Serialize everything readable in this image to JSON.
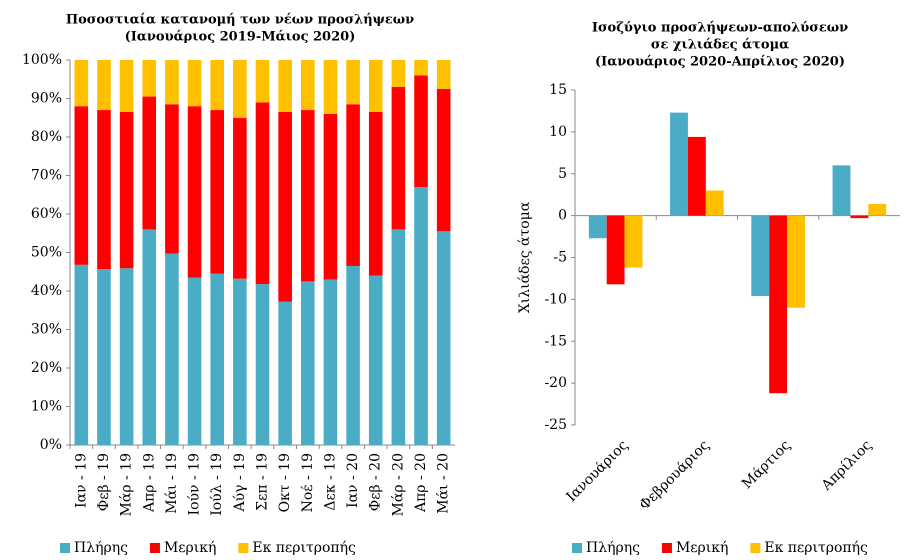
{
  "chart_data": [
    {
      "type": "bar",
      "stacked": true,
      "title": [
        "Ποσοστιαία κατανομή των νέων προσλήψεων",
        "(Ιανουάριος 2019-Μάιος 2020)"
      ],
      "categories": [
        "Ιαν - 19",
        "Φεβ - 19",
        "Μάρ - 19",
        "Απρ - 19",
        "Μάι - 19",
        "Ιούν - 19",
        "Ιούλ - 19",
        "Αύγ - 19",
        "Σεπ - 19",
        "Οκτ - 19",
        "Νοέ - 19",
        "Δεκ - 19",
        "Ιαν - 20",
        "Φεβ - 20",
        "Μάρ - 20",
        "Απρ - 20",
        "Μάι - 20"
      ],
      "series": [
        {
          "name": "Πλήρης",
          "color": "#4bacc6",
          "values": [
            46.8,
            45.7,
            45.9,
            56,
            49.7,
            43.5,
            44.5,
            43.2,
            41.8,
            37.2,
            42.5,
            43,
            46.5,
            44,
            56,
            67,
            55.5
          ]
        },
        {
          "name": "Μερική",
          "color": "#ff0000",
          "values": [
            41.2,
            41.3,
            40.6,
            34.5,
            38.8,
            44.5,
            42.5,
            41.8,
            47.2,
            49.3,
            44.5,
            43,
            42,
            42.5,
            37,
            29,
            37
          ]
        },
        {
          "name": "Εκ περιτροπής",
          "color": "#ffc000",
          "values": [
            12,
            13,
            13.5,
            9.5,
            11.5,
            12,
            13,
            15,
            11,
            13.5,
            13,
            14,
            11.5,
            13.5,
            7,
            4,
            7.5
          ]
        }
      ],
      "ylim": [
        0,
        100
      ],
      "yticks": [
        {
          "value": 0,
          "label": "0%"
        },
        {
          "value": 10,
          "label": "10%"
        },
        {
          "value": 20,
          "label": "20%"
        },
        {
          "value": 30,
          "label": "30%"
        },
        {
          "value": 40,
          "label": "40%"
        },
        {
          "value": 50,
          "label": "50%"
        },
        {
          "value": 60,
          "label": "60%"
        },
        {
          "value": 70,
          "label": "70%"
        },
        {
          "value": 80,
          "label": "80%"
        },
        {
          "value": 90,
          "label": "90%"
        },
        {
          "value": 100,
          "label": "100%"
        }
      ]
    },
    {
      "type": "bar",
      "stacked": false,
      "title": [
        "Ισοζύγιο προσλήψεων-απολύσεων",
        "σε χιλιάδες άτομα",
        "(Ιανουάριος 2020-Απρίλιος 2020)"
      ],
      "y_label": "Χιλιάδες άτομα",
      "categories": [
        "Ιανουάριος",
        "Φεβρουάριος",
        "Μάρτιος",
        "Απρίλιος"
      ],
      "series": [
        {
          "name": "Πλήρης",
          "color": "#4bacc6",
          "values": [
            -2.7,
            12.3,
            -9.6,
            6.0
          ]
        },
        {
          "name": "Μερική",
          "color": "#ff0000",
          "values": [
            -8.2,
            9.4,
            -21.2,
            -0.3
          ]
        },
        {
          "name": "Εκ περιτροπής",
          "color": "#ffc000",
          "values": [
            -6.2,
            3.0,
            -11,
            1.4
          ]
        }
      ],
      "ylim": [
        -25,
        15
      ],
      "yticks": [
        -25,
        -20,
        -15,
        -10,
        -5,
        0,
        5,
        10,
        15
      ]
    }
  ]
}
